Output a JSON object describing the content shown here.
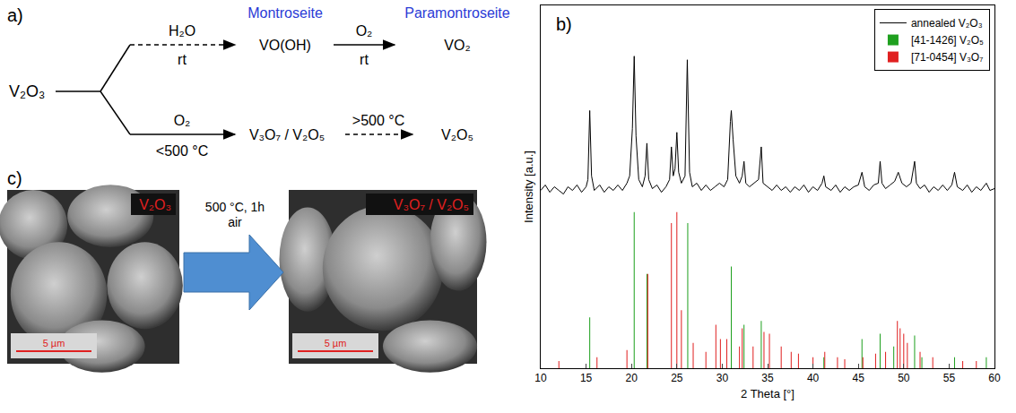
{
  "scheme": {
    "panel": "a)",
    "start": "V₂O₃",
    "upper": {
      "reagent": "H₂O",
      "condition": "rt",
      "product_name": "Montroseite",
      "product": "VO(OH)",
      "next_reagent": "O₂",
      "next_condition": "rt",
      "final_name": "Paramontroseite",
      "final": "VO₂"
    },
    "lower": {
      "reagent": "O₂",
      "condition": "<500 °C",
      "product": "V₃O₇ / V₂O₅",
      "next_condition": ">500 °C",
      "final": "V₂O₅"
    }
  },
  "sem": {
    "panel": "c)",
    "before": {
      "label": "V₂O₃",
      "scale_bar": "5 µm"
    },
    "process": [
      "500 °C, 1h",
      "air"
    ],
    "after": {
      "label": "V₃O₇ / V₂O₅",
      "scale_bar": "5 µm"
    }
  },
  "chart_data": {
    "type": "line",
    "panel": "b)",
    "xlabel": "2 Theta [°]",
    "ylabel": "Intensity [a.u.]",
    "xlim": [
      10,
      60
    ],
    "xticks": [
      10,
      15,
      20,
      25,
      30,
      35,
      40,
      45,
      50,
      55,
      60
    ],
    "ylim": [
      0,
      100
    ],
    "tick_labels": "x",
    "grid": false,
    "legend": "top-right",
    "series": [
      {
        "name": "annealed V₂O₃",
        "type": "line",
        "color": "#000000",
        "x": [
          10,
          10.5,
          11,
          11.5,
          12,
          12.5,
          13,
          13.5,
          14,
          14.5,
          15,
          15.2,
          15.4,
          15.6,
          15.9,
          16.5,
          17,
          17.5,
          18,
          18.5,
          19,
          19.5,
          19.8,
          20.1,
          20.3,
          20.5,
          20.8,
          21.2,
          21.5,
          21.7,
          21.9,
          22.3,
          22.8,
          23.3,
          23.8,
          24.2,
          24.4,
          24.6,
          24.8,
          25.0,
          25.2,
          25.5,
          25.9,
          26.15,
          26.4,
          26.7,
          27.2,
          27.7,
          28.2,
          28.7,
          29.2,
          29.7,
          30.2,
          30.6,
          30.9,
          31.0,
          31.2,
          31.5,
          31.9,
          32.2,
          32.4,
          32.6,
          33.0,
          33.5,
          34.0,
          34.3,
          34.5,
          35.0,
          35.5,
          36,
          36.5,
          37,
          37.5,
          38,
          38.5,
          39,
          39.5,
          40,
          40.5,
          41.0,
          41.2,
          41.4,
          42,
          42.5,
          43,
          43.5,
          44,
          44.5,
          45,
          45.4,
          45.7,
          46.2,
          46.7,
          47.2,
          47.4,
          47.6,
          48,
          48.5,
          49.0,
          49.4,
          49.8,
          50.3,
          50.8,
          51.2,
          51.4,
          51.8,
          52.3,
          52.8,
          53.3,
          53.8,
          54.3,
          54.8,
          55.3,
          55.6,
          55.9,
          56.5,
          57,
          57.5,
          58,
          58.5,
          59.1,
          59.5,
          60
        ],
        "values": [
          49,
          50.5,
          48.5,
          50,
          49,
          48,
          50,
          49,
          50.5,
          48.5,
          50,
          52,
          71,
          53,
          49,
          50.5,
          48.5,
          50,
          49,
          50.5,
          49,
          51,
          53,
          66,
          86,
          64,
          52,
          50,
          53,
          62,
          52,
          49.5,
          50.5,
          48.5,
          50,
          52,
          61,
          53,
          55,
          65,
          54,
          51,
          53,
          85,
          54,
          50,
          51,
          49,
          50.5,
          49,
          50,
          51,
          50,
          52,
          68,
          71,
          63,
          53,
          51,
          53,
          57,
          51,
          50,
          51,
          52,
          61,
          51,
          50,
          49,
          50.5,
          49,
          50,
          48.5,
          50,
          49,
          50.5,
          48.5,
          50,
          49,
          51,
          53,
          50,
          49,
          50.5,
          48.5,
          50,
          49,
          50,
          50.5,
          54,
          50,
          49,
          50.5,
          51,
          57,
          51,
          49.5,
          50.5,
          51.5,
          54,
          51,
          50,
          51,
          57,
          51,
          49.5,
          50.5,
          48.5,
          50,
          49,
          50.5,
          49,
          50.5,
          54,
          50,
          49,
          50.5,
          48.5,
          50,
          49,
          51,
          49,
          49.5
        ]
      },
      {
        "name": "[41-1426] V₂O₅",
        "type": "bar",
        "color": "#1fa01f",
        "x": [
          15.4,
          20.3,
          21.7,
          26.2,
          31.0,
          32.4,
          34.3,
          41.2,
          45.4,
          47.4,
          48.9,
          51.2,
          52.0,
          55.6,
          59.1
        ],
        "values": [
          14,
          43,
          26,
          40,
          28,
          12,
          13,
          3,
          8,
          9.5,
          6,
          9,
          3,
          3,
          3
        ]
      },
      {
        "name": "[71-0454] V₃O₇",
        "type": "bar",
        "color": "#e02020",
        "x": [
          12.0,
          16.2,
          19.5,
          21.8,
          24.4,
          25.0,
          25.5,
          26.8,
          28.2,
          29.3,
          29.8,
          30.5,
          31.9,
          32.2,
          33.4,
          34.6,
          35.2,
          36.5,
          37.6,
          38.4,
          40.0,
          41.3,
          42.7,
          43.5,
          45.5,
          46.9,
          48.0,
          49.3,
          49.6,
          50.0,
          50.4,
          51.8,
          53.2,
          56.5,
          58.0
        ],
        "values": [
          2,
          3,
          5,
          26,
          40,
          43,
          16,
          7,
          4.5,
          12,
          8,
          8,
          6,
          11,
          6,
          10,
          9.5,
          6,
          4.5,
          4,
          3,
          4.5,
          3,
          2.5,
          3,
          4,
          4.5,
          13,
          11,
          9.5,
          7,
          4.5,
          3,
          2,
          2
        ]
      }
    ]
  }
}
